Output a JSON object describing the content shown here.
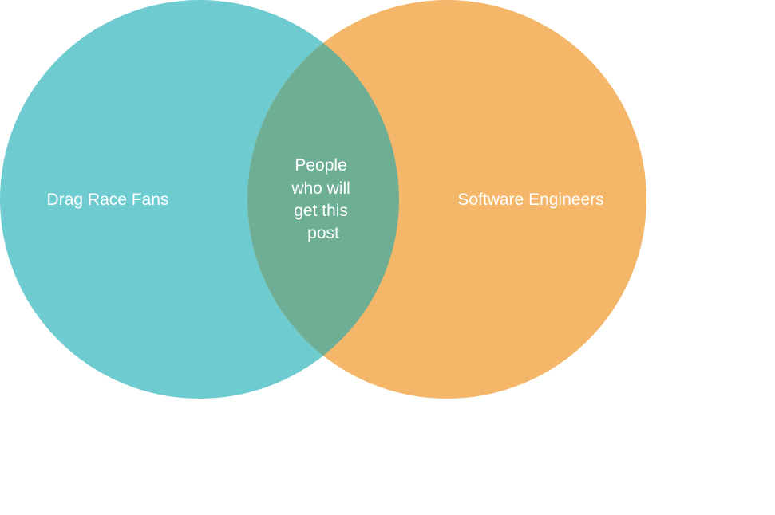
{
  "venn": {
    "left_set": {
      "label": "Drag Race Fans",
      "color": "#6ecbd0"
    },
    "right_set": {
      "label": "Software Engineers",
      "color": "#f4b76a"
    },
    "intersection": {
      "label_lines": [
        "People",
        "who will",
        "get this",
        "post"
      ],
      "color": "#6dae95"
    }
  }
}
